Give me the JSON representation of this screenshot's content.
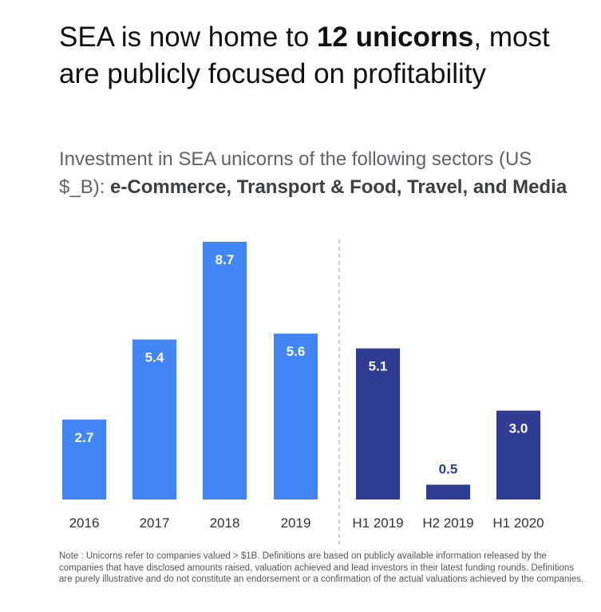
{
  "title": {
    "pre": "SEA is now home to ",
    "bold": "12 unicorns",
    "post": ", most are publicly focused on profitability"
  },
  "subtitle": {
    "pre": "Investment in SEA unicorns of the following sectors (US $_B): ",
    "bold": "e-Commerce, Transport & Food, Travel, and Media"
  },
  "colors": {
    "annual": "#4285F4",
    "half_year": "#2E3D92"
  },
  "chart_data": {
    "type": "bar",
    "categories": [
      "2016",
      "2017",
      "2018",
      "2019",
      "H1 2019",
      "H2 2019",
      "H1 2020"
    ],
    "values": [
      2.7,
      5.4,
      8.7,
      5.6,
      5.1,
      0.5,
      3.0
    ],
    "value_labels": [
      "2.7",
      "5.4",
      "8.7",
      "5.6",
      "5.1",
      "0.5",
      "3.0"
    ],
    "groups": [
      "annual",
      "annual",
      "annual",
      "annual",
      "half_year",
      "half_year",
      "half_year"
    ],
    "ylim": [
      0,
      8.7
    ],
    "grid": false,
    "y_axis_shown": false,
    "divider": "dashed line between 2019 and H1 2019"
  },
  "note": "Note : Unicorns refer to companies valued > $1B. Definitions are based on publicly available information released by the companies that have disclosed amounts raised, valuation achieved and lead investors in their latest funding rounds. Definitions are purely illustrative and do not constitute an endorsement or a confirmation of the actual valuations achieved by the companies."
}
